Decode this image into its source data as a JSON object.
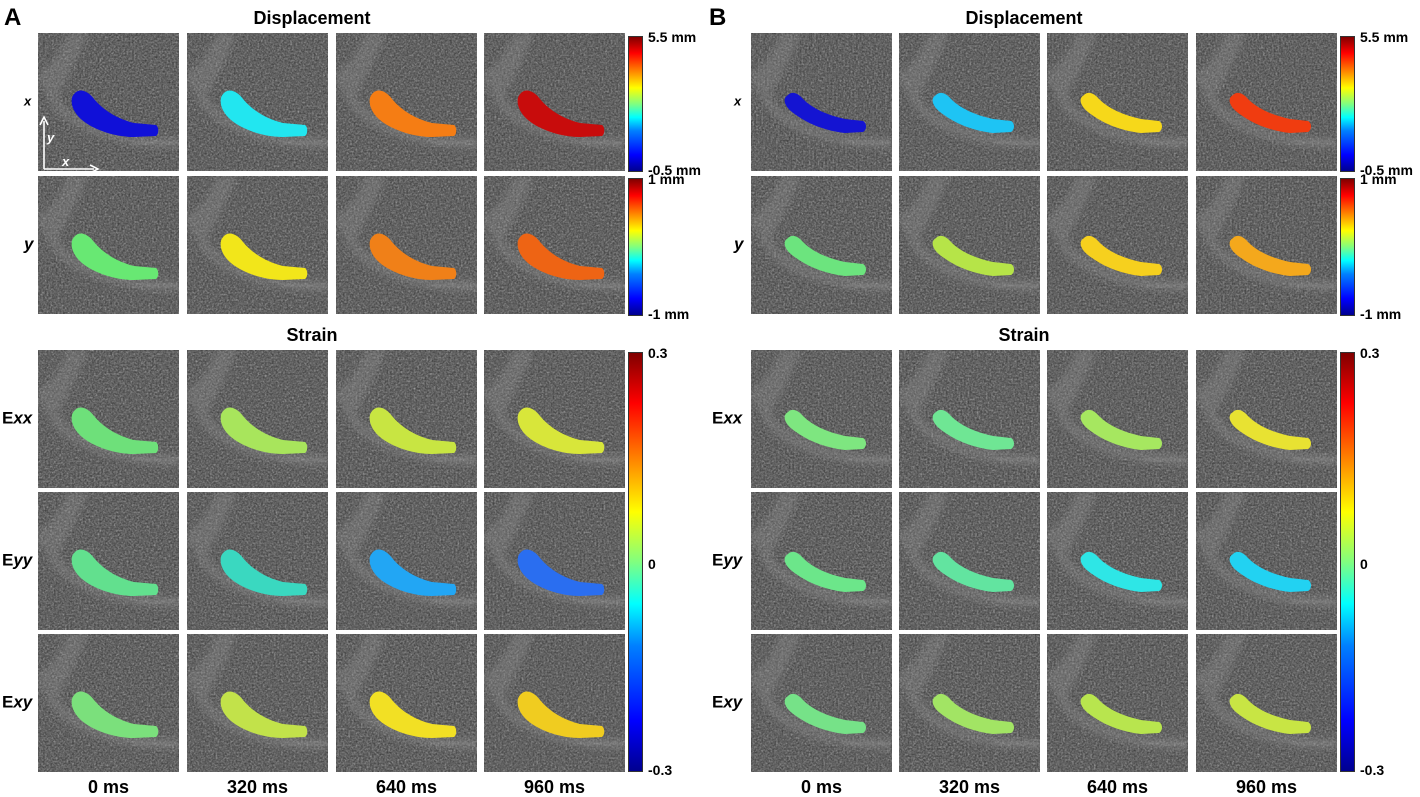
{
  "panels": [
    {
      "letter": "A",
      "displacement_title": "Displacement",
      "strain_title": "Strain",
      "rows": [
        {
          "label_prefix": "",
          "label_italic": "x",
          "colors": [
            "#1010d8",
            "#22e6f0",
            "#f57d14",
            "#c80c0c"
          ]
        },
        {
          "label_prefix": "",
          "label_italic": "y",
          "colors": [
            "#68e873",
            "#f2e61a",
            "#f08018",
            "#ee6414"
          ]
        },
        {
          "label_prefix": "E",
          "label_italic": "xx",
          "colors": [
            "#6ee07a",
            "#a8e55c",
            "#c8e542",
            "#d8e63a"
          ]
        },
        {
          "label_prefix": "E",
          "label_italic": "yy",
          "colors": [
            "#62e08e",
            "#3ad8c0",
            "#22a6f4",
            "#2a6ef0"
          ]
        },
        {
          "label_prefix": "E",
          "label_italic": "xy",
          "colors": [
            "#7be07c",
            "#c2e24a",
            "#f2e024",
            "#f0cc20"
          ]
        }
      ],
      "axis_inset": {
        "y": "y",
        "x": "x"
      }
    },
    {
      "letter": "B",
      "displacement_title": "Displacement",
      "strain_title": "Strain",
      "rows": [
        {
          "label_prefix": "",
          "label_italic": "x",
          "colors": [
            "#1414d2",
            "#1ec4f4",
            "#f6d81a",
            "#f03c10"
          ]
        },
        {
          "label_prefix": "",
          "label_italic": "y",
          "colors": [
            "#6ce47e",
            "#b6e448",
            "#f6d01e",
            "#f4a81c"
          ]
        },
        {
          "label_prefix": "E",
          "label_italic": "xx",
          "colors": [
            "#7ee680",
            "#6fe694",
            "#a6e760",
            "#e8e232"
          ]
        },
        {
          "label_prefix": "E",
          "label_italic": "yy",
          "colors": [
            "#6ce68a",
            "#62e4a0",
            "#2ee6e6",
            "#22d2f2"
          ]
        },
        {
          "label_prefix": "E",
          "label_italic": "xy",
          "colors": [
            "#76e288",
            "#a2e464",
            "#b8e54e",
            "#c8e544"
          ]
        }
      ]
    }
  ],
  "time_labels": [
    "0 ms",
    "320 ms",
    "640 ms",
    "960 ms"
  ],
  "colorbars": {
    "displacement_x": {
      "top": "5.5 mm",
      "bottom": "-0.5 mm"
    },
    "displacement_y": {
      "top": "1 mm",
      "bottom": "-1 mm"
    },
    "strain": {
      "top": "0.3",
      "mid": "0",
      "bottom": "-0.3"
    }
  },
  "colormap": "jet"
}
